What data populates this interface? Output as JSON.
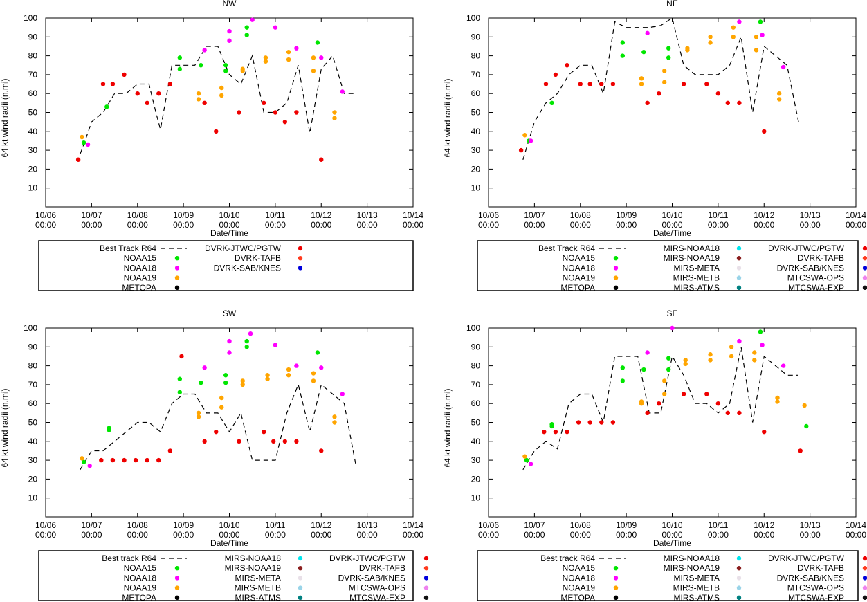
{
  "colors": {
    "NOAA15": "#00e600",
    "NOAA18": "#ff00ff",
    "NOAA19": "#ffa500",
    "METOPA": "#000000",
    "MIRS-NOAA18": "#00e5ee",
    "MIRS-NOAA19": "#8b2020",
    "MIRS-META": "#e8e0e8",
    "MIRS-METB": "#99d4e8",
    "MIRS-ATMS": "#008080",
    "DVRK-JTWC/PGTW": "#ee0000",
    "DVRK-TAFB": "#ff3b1f",
    "DVRK-SAB/KNES": "#0000dd",
    "MTCSWA-OPS": "#ee82ee",
    "MTCSWA-EXP": "#111111",
    "track": "#000000"
  },
  "chart_data": [
    {
      "type": "scatter",
      "title": "NW",
      "xlabel": "Date/Time",
      "ylabel": "64 kt wind radii (n.mi)",
      "xlim": [
        0,
        8
      ],
      "ylim": [
        0,
        100
      ],
      "yticks": [
        10,
        20,
        30,
        40,
        50,
        60,
        70,
        80,
        90,
        100
      ],
      "xticks": [
        {
          "x": 0,
          "l1": "10/06",
          "l2": "00:00"
        },
        {
          "x": 1,
          "l1": "10/07",
          "l2": "00:00"
        },
        {
          "x": 2,
          "l1": "10/08",
          "l2": "00:00"
        },
        {
          "x": 3,
          "l1": "10/09",
          "l2": "00:00"
        },
        {
          "x": 4,
          "l1": "10/10",
          "l2": "00:00"
        },
        {
          "x": 5,
          "l1": "10/11",
          "l2": "00:00"
        },
        {
          "x": 6,
          "l1": "10/12",
          "l2": "00:00"
        },
        {
          "x": 7,
          "l1": "10/13",
          "l2": "00:00"
        },
        {
          "x": 8,
          "l1": "10/14",
          "l2": "00:00"
        }
      ],
      "track": {
        "name": "Best Track R64",
        "x": [
          0.75,
          0.83,
          1.0,
          1.25,
          1.5,
          1.75,
          2.0,
          2.25,
          2.4,
          2.5,
          2.75,
          3.0,
          3.25,
          3.5,
          3.75,
          4.0,
          4.25,
          4.5,
          4.75,
          5.0,
          5.25,
          5.5,
          5.75,
          6.0,
          6.25,
          6.5,
          6.75
        ],
        "y": [
          28,
          33,
          45,
          50,
          60,
          60,
          65,
          65,
          50,
          41,
          75,
          75,
          75,
          85,
          85,
          70,
          65,
          80,
          50,
          50,
          55,
          75,
          39,
          73,
          80,
          60,
          60
        ]
      },
      "legend_columns": [
        [
          "Best Track R64",
          "NOAA15",
          "NOAA18",
          "NOAA19",
          "METOPA"
        ],
        [
          "DVRK-JTWC/PGTW",
          "DVRK-TAFB",
          "DVRK-SAB/KNES"
        ]
      ],
      "series": [
        {
          "name": "NOAA15",
          "x": [
            0.83,
            1.33,
            2.92,
            2.92,
            3.38,
            3.92,
            3.92,
            4.38,
            4.38,
            5.92
          ],
          "y": [
            34,
            53,
            79,
            73,
            75,
            75,
            72,
            95,
            91,
            87
          ]
        },
        {
          "name": "NOAA18",
          "x": [
            0.92,
            3.46,
            4.0,
            4.0,
            4.5,
            5.0,
            5.46,
            6.0,
            6.46
          ],
          "y": [
            33,
            83,
            93,
            88,
            99,
            95,
            84,
            79,
            61
          ]
        },
        {
          "name": "NOAA19",
          "x": [
            0.79,
            3.33,
            3.33,
            3.83,
            3.83,
            4.29,
            4.29,
            4.79,
            4.79,
            5.29,
            5.29,
            5.83,
            5.83,
            6.29,
            6.29
          ],
          "y": [
            37,
            60,
            57,
            63,
            59,
            73,
            72,
            79,
            77,
            82,
            78,
            79,
            72,
            50,
            47
          ]
        },
        {
          "name": "DVRK-JTWC/PGTW",
          "x": [
            0.71,
            1.25,
            1.46,
            1.71,
            2.0,
            2.21,
            2.46,
            2.71,
            3.46,
            3.71,
            4.21,
            4.75,
            5.0,
            5.21,
            5.46,
            6.0
          ],
          "y": [
            25,
            65,
            65,
            70,
            60,
            55,
            60,
            65,
            55,
            40,
            50,
            55,
            50,
            45,
            50,
            25
          ]
        }
      ]
    },
    {
      "type": "scatter",
      "title": "NE",
      "xlabel": "Date/Time",
      "ylabel": "64 kt wind radii (n.mi)",
      "xlim": [
        0,
        8
      ],
      "ylim": [
        0,
        100
      ],
      "yticks": [
        10,
        20,
        30,
        40,
        50,
        60,
        70,
        80,
        90,
        100
      ],
      "xticks": [
        {
          "x": 0,
          "l1": "10/06",
          "l2": "00:00"
        },
        {
          "x": 1,
          "l1": "10/07",
          "l2": "00:00"
        },
        {
          "x": 2,
          "l1": "10/08",
          "l2": "00:00"
        },
        {
          "x": 3,
          "l1": "10/09",
          "l2": "00:00"
        },
        {
          "x": 4,
          "l1": "10/10",
          "l2": "00:00"
        },
        {
          "x": 5,
          "l1": "10/11",
          "l2": "00:00"
        },
        {
          "x": 6,
          "l1": "10/12",
          "l2": "00:00"
        },
        {
          "x": 7,
          "l1": "10/13",
          "l2": "00:00"
        },
        {
          "x": 8,
          "l1": "10/14",
          "l2": "00:00"
        }
      ],
      "track": {
        "name": "Best Track R64",
        "x": [
          0.75,
          1.0,
          1.25,
          1.5,
          1.75,
          2.0,
          2.25,
          2.5,
          2.75,
          3.0,
          3.25,
          3.5,
          3.75,
          4.0,
          4.25,
          4.5,
          4.75,
          5.0,
          5.25,
          5.5,
          5.75,
          6.0,
          6.25,
          6.5,
          6.75
        ],
        "y": [
          25,
          45,
          55,
          60,
          70,
          75,
          75,
          60,
          98,
          95,
          95,
          95,
          96,
          100,
          75,
          70,
          70,
          70,
          75,
          90,
          50,
          85,
          80,
          75,
          45
        ]
      },
      "legend_columns": [
        [
          "Best Track R64",
          "NOAA15",
          "NOAA18",
          "NOAA19",
          "METOPA"
        ],
        [
          "MIRS-NOAA18",
          "MIRS-NOAA19",
          "MIRS-META",
          "MIRS-METB",
          "MIRS-ATMS"
        ],
        [
          "DVRK-JTWC/PGTW",
          "DVRK-TAFB",
          "DVRK-SAB/KNES",
          "MTCSWA-OPS",
          "MTCSWA-EXP"
        ]
      ],
      "series": [
        {
          "name": "NOAA15",
          "x": [
            0.88,
            1.38,
            2.92,
            2.92,
            3.38,
            3.92,
            3.92,
            5.92
          ],
          "y": [
            35,
            55,
            87,
            80,
            82,
            84,
            79,
            98
          ]
        },
        {
          "name": "NOAA18",
          "x": [
            0.92,
            3.46,
            5.46,
            5.96,
            6.42
          ],
          "y": [
            35,
            92,
            98,
            91,
            74
          ]
        },
        {
          "name": "NOAA19",
          "x": [
            0.79,
            3.33,
            3.33,
            3.83,
            3.83,
            4.33,
            4.33,
            4.83,
            4.83,
            5.33,
            5.33,
            5.83,
            5.83,
            6.33,
            6.33
          ],
          "y": [
            38,
            68,
            65,
            72,
            66,
            84,
            83,
            90,
            87,
            95,
            90,
            90,
            83,
            60,
            57
          ]
        },
        {
          "name": "DVRK-JTWC/PGTW",
          "x": [
            0.71,
            1.25,
            1.46,
            1.71,
            2.0,
            2.21,
            2.46,
            2.71,
            3.46,
            3.71,
            4.25,
            4.75,
            5.0,
            5.21,
            5.46,
            6.0
          ],
          "y": [
            30,
            65,
            70,
            75,
            65,
            65,
            65,
            65,
            55,
            60,
            65,
            65,
            60,
            55,
            55,
            40
          ]
        }
      ]
    },
    {
      "type": "scatter",
      "title": "SW",
      "xlabel": "Date/Time",
      "ylabel": "64 kt wind radii (n.mi)",
      "xlim": [
        0,
        8
      ],
      "ylim": [
        0,
        100
      ],
      "yticks": [
        10,
        20,
        30,
        40,
        50,
        60,
        70,
        80,
        90,
        100
      ],
      "xticks": [
        {
          "x": 0,
          "l1": "10/06",
          "l2": "00:00"
        },
        {
          "x": 1,
          "l1": "10/07",
          "l2": "00:00"
        },
        {
          "x": 2,
          "l1": "10/08",
          "l2": "00:00"
        },
        {
          "x": 3,
          "l1": "10/09",
          "l2": "00:00"
        },
        {
          "x": 4,
          "l1": "10/10",
          "l2": "00:00"
        },
        {
          "x": 5,
          "l1": "10/11",
          "l2": "00:00"
        },
        {
          "x": 6,
          "l1": "10/12",
          "l2": "00:00"
        },
        {
          "x": 7,
          "l1": "10/13",
          "l2": "00:00"
        },
        {
          "x": 8,
          "l1": "10/14",
          "l2": "00:00"
        }
      ],
      "track": {
        "name": "Best track R64",
        "x": [
          0.75,
          1.0,
          1.25,
          1.5,
          1.75,
          2.0,
          2.25,
          2.5,
          2.75,
          3.0,
          3.25,
          3.5,
          3.75,
          4.0,
          4.25,
          4.5,
          4.75,
          5.0,
          5.25,
          5.5,
          5.75,
          6.0,
          6.25,
          6.5,
          6.75
        ],
        "y": [
          25,
          35,
          35,
          40,
          45,
          50,
          50,
          45,
          60,
          65,
          65,
          55,
          55,
          45,
          55,
          30,
          30,
          30,
          55,
          70,
          45,
          70,
          65,
          60,
          28
        ]
      },
      "legend_columns": [
        [
          "Best track R64",
          "NOAA15",
          "NOAA18",
          "NOAA19",
          "METOPA"
        ],
        [
          "MIRS-NOAA18",
          "MIRS-NOAA19",
          "MIRS-META",
          "MIRS-METB",
          "MIRS-ATMS"
        ],
        [
          "DVRK-JTWC/PGTW",
          "DVRK-TAFB",
          "DVRK-SAB/KNES",
          "MTCSWA-OPS",
          "MTCSWA-EXP"
        ]
      ],
      "series": [
        {
          "name": "NOAA15",
          "x": [
            0.83,
            1.38,
            1.38,
            2.92,
            2.92,
            3.38,
            3.92,
            3.92,
            4.38,
            4.38,
            5.92
          ],
          "y": [
            29,
            47,
            46,
            73,
            66,
            71,
            75,
            71,
            93,
            90,
            87
          ]
        },
        {
          "name": "NOAA18",
          "x": [
            0.96,
            3.46,
            4.0,
            4.0,
            4.46,
            5.0,
            5.46,
            6.0,
            6.46
          ],
          "y": [
            27,
            79,
            93,
            87,
            97,
            91,
            80,
            79,
            65
          ]
        },
        {
          "name": "NOAA19",
          "x": [
            0.79,
            3.33,
            3.33,
            3.83,
            3.83,
            4.29,
            4.29,
            4.83,
            4.83,
            5.29,
            5.29,
            5.83,
            5.83,
            6.29,
            6.29
          ],
          "y": [
            31,
            55,
            53,
            63,
            58,
            72,
            70,
            75,
            73,
            78,
            75,
            76,
            72,
            53,
            50
          ]
        },
        {
          "name": "DVRK-JTWC/PGTW",
          "x": [
            1.21,
            1.46,
            1.71,
            1.96,
            2.21,
            2.46,
            2.71,
            2.96,
            3.46,
            3.71,
            4.21,
            4.75,
            4.96,
            5.21,
            5.46,
            6.0
          ],
          "y": [
            30,
            30,
            30,
            30,
            30,
            30,
            35,
            85,
            40,
            45,
            40,
            45,
            40,
            40,
            40,
            35
          ]
        }
      ]
    },
    {
      "type": "scatter",
      "title": "SE",
      "xlabel": "Date/Time",
      "ylabel": "64 kt wind radii (n.mi)",
      "xlim": [
        0,
        8
      ],
      "ylim": [
        0,
        100
      ],
      "yticks": [
        10,
        20,
        30,
        40,
        50,
        60,
        70,
        80,
        90,
        100
      ],
      "xticks": [
        {
          "x": 0,
          "l1": "10/06",
          "l2": "00:00"
        },
        {
          "x": 1,
          "l1": "10/07",
          "l2": "00:00"
        },
        {
          "x": 2,
          "l1": "10/08",
          "l2": "00:00"
        },
        {
          "x": 3,
          "l1": "10/09",
          "l2": "00:00"
        },
        {
          "x": 4,
          "l1": "10/10",
          "l2": "00:00"
        },
        {
          "x": 5,
          "l1": "10/11",
          "l2": "00:00"
        },
        {
          "x": 6,
          "l1": "10/12",
          "l2": "00:00"
        },
        {
          "x": 7,
          "l1": "10/13",
          "l2": "00:00"
        },
        {
          "x": 8,
          "l1": "10/14",
          "l2": "00:00"
        }
      ],
      "track": {
        "name": "Best track R64",
        "x": [
          0.75,
          1.0,
          1.25,
          1.5,
          1.75,
          2.0,
          2.25,
          2.5,
          2.75,
          3.0,
          3.25,
          3.5,
          3.75,
          4.0,
          4.25,
          4.5,
          4.75,
          5.0,
          5.25,
          5.5,
          5.75,
          6.0,
          6.25,
          6.5,
          6.75
        ],
        "y": [
          25,
          35,
          40,
          36,
          60,
          65,
          65,
          50,
          85,
          85,
          85,
          55,
          55,
          85,
          75,
          60,
          60,
          55,
          60,
          90,
          50,
          85,
          80,
          75,
          75
        ]
      },
      "legend_columns": [
        [
          "Best track R64",
          "NOAA15",
          "NOAA18",
          "NOAA19",
          "METOPA"
        ],
        [
          "MIRS-NOAA18",
          "MIRS-NOAA19",
          "MIRS-META",
          "MIRS-METB",
          "MIRS-ATMS"
        ],
        [
          "DVRK-JTWC/PGTW",
          "DVRK-TAFB",
          "DVRK-SAB/KNES",
          "MTCSWA-OPS",
          "MTCSWA-EXP"
        ]
      ],
      "series": [
        {
          "name": "NOAA15",
          "x": [
            0.83,
            1.38,
            1.38,
            2.92,
            2.92,
            3.38,
            3.92,
            3.92,
            5.92,
            6.92
          ],
          "y": [
            30,
            49,
            48,
            79,
            72,
            78,
            84,
            78,
            98,
            48
          ]
        },
        {
          "name": "NOAA18",
          "x": [
            0.92,
            3.46,
            4.0,
            5.46,
            5.96,
            6.42
          ],
          "y": [
            28,
            87,
            100,
            93,
            91,
            80
          ]
        },
        {
          "name": "NOAA19",
          "x": [
            0.79,
            3.33,
            3.33,
            3.83,
            3.83,
            4.29,
            4.29,
            4.83,
            4.83,
            5.29,
            5.29,
            5.79,
            5.79,
            6.29,
            6.29,
            6.88
          ],
          "y": [
            32,
            61,
            60,
            72,
            65,
            83,
            81,
            86,
            83,
            90,
            85,
            87,
            83,
            63,
            61,
            59
          ]
        },
        {
          "name": "DVRK-JTWC/PGTW",
          "x": [
            1.21,
            1.46,
            1.71,
            1.96,
            2.21,
            2.46,
            2.71,
            3.46,
            3.71,
            4.25,
            4.75,
            5.0,
            5.21,
            5.46,
            6.0,
            6.79
          ],
          "y": [
            45,
            45,
            45,
            50,
            50,
            50,
            50,
            55,
            60,
            65,
            65,
            60,
            55,
            55,
            45,
            35
          ]
        }
      ]
    }
  ]
}
